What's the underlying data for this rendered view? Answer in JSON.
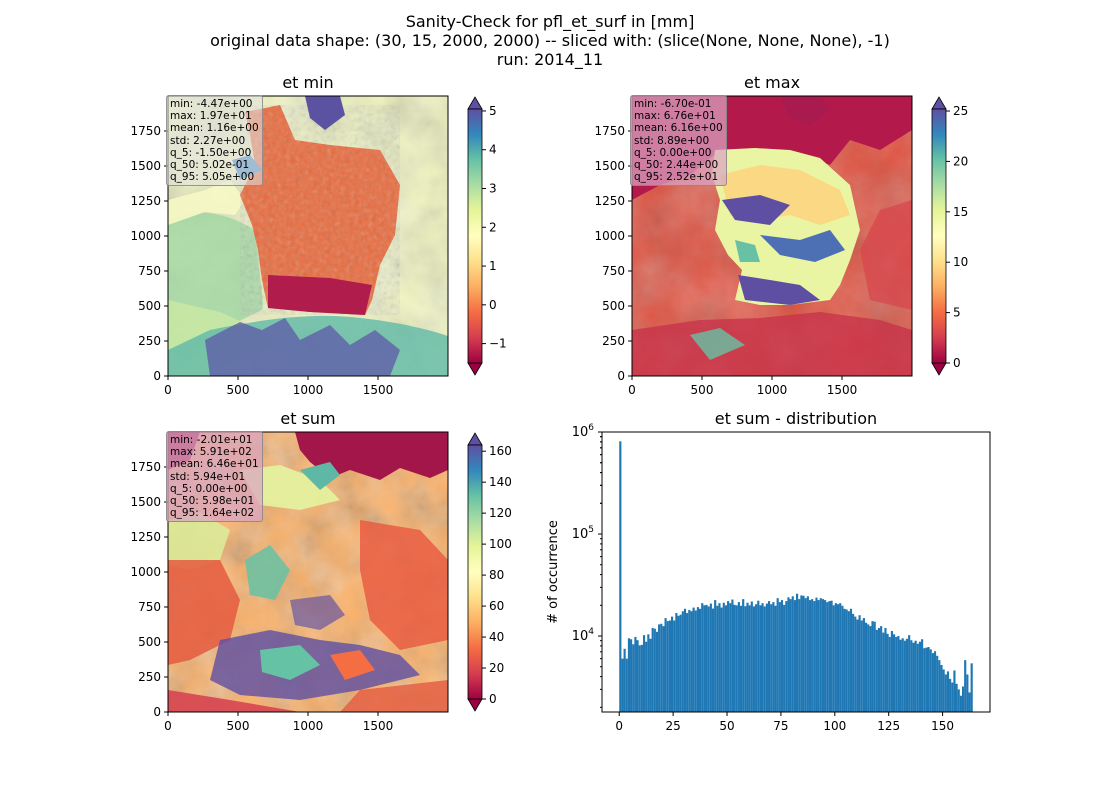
{
  "figure": {
    "title_lines": [
      "Sanity-Check for pfl_et_surf in [mm]",
      "original data shape: (30, 15, 2000, 2000) -- sliced with: (slice(None, None, None), -1)",
      "run: 2014_11"
    ]
  },
  "chart_data": [
    {
      "type": "heatmap",
      "title": "et min",
      "x_ticks": [
        0,
        500,
        1000,
        1500
      ],
      "y_ticks": [
        0,
        250,
        500,
        750,
        1000,
        1250,
        1500,
        1750
      ],
      "xlim": [
        0,
        2000
      ],
      "ylim": [
        0,
        2000
      ],
      "colormap": "Spectral",
      "colorbar": {
        "ticks": [
          -1,
          0,
          1,
          2,
          3,
          4,
          5
        ],
        "range": [
          -1.5,
          5.05
        ],
        "extend": "both"
      },
      "stats": [
        "min: -4.47e+00",
        "max: 1.97e+01",
        "mean: 1.16e+00",
        "std: 2.27e+00",
        "q_5: -1.50e+00",
        "q_50: 5.02e-01",
        "q_95: 5.05e+00"
      ]
    },
    {
      "type": "heatmap",
      "title": "et max",
      "x_ticks": [
        0,
        500,
        1000,
        1500
      ],
      "y_ticks": [
        0,
        250,
        500,
        750,
        1000,
        1250,
        1500,
        1750
      ],
      "xlim": [
        0,
        2000
      ],
      "ylim": [
        0,
        2000
      ],
      "colormap": "Spectral",
      "colorbar": {
        "ticks": [
          0,
          5,
          10,
          15,
          20,
          25
        ],
        "range": [
          0,
          25.2
        ],
        "extend": "both"
      },
      "stats": [
        "min: -6.70e-01",
        "max: 6.76e+01",
        "mean: 6.16e+00",
        "std: 8.89e+00",
        "q_5: 0.00e+00",
        "q_50: 2.44e+00",
        "q_95: 2.52e+01"
      ]
    },
    {
      "type": "heatmap",
      "title": "et sum",
      "x_ticks": [
        0,
        500,
        1000,
        1500
      ],
      "y_ticks": [
        0,
        250,
        500,
        750,
        1000,
        1250,
        1500,
        1750
      ],
      "xlim": [
        0,
        2000
      ],
      "ylim": [
        0,
        2000
      ],
      "colormap": "Spectral",
      "colorbar": {
        "ticks": [
          0,
          20,
          40,
          60,
          80,
          100,
          120,
          140,
          160
        ],
        "range": [
          0,
          164
        ],
        "extend": "both"
      },
      "stats": [
        "min: -2.01e+01",
        "max: 5.91e+02",
        "mean: 6.46e+01",
        "std: 5.94e+01",
        "q_5: 0.00e+00",
        "q_50: 5.98e+01",
        "q_95: 1.64e+02"
      ]
    },
    {
      "type": "bar",
      "title": "et sum - distribution",
      "xlabel": "",
      "ylabel": "# of occurrence",
      "yscale": "log",
      "x_ticks": [
        0,
        25,
        50,
        75,
        100,
        125,
        150
      ],
      "xlim": [
        -8,
        172
      ],
      "ylim": [
        1800,
        1000000
      ],
      "y_tick_labels": [
        "10^4",
        "10^5",
        "10^6"
      ],
      "color": "#1f77b4",
      "bin_width": 1,
      "x": [
        0,
        1,
        2,
        3,
        4,
        5,
        6,
        7,
        8,
        9,
        10,
        11,
        12,
        13,
        14,
        15,
        16,
        17,
        18,
        19,
        20,
        21,
        22,
        23,
        24,
        25,
        26,
        27,
        28,
        29,
        30,
        31,
        32,
        33,
        34,
        35,
        36,
        37,
        38,
        39,
        40,
        41,
        42,
        43,
        44,
        45,
        46,
        47,
        48,
        49,
        50,
        51,
        52,
        53,
        54,
        55,
        56,
        57,
        58,
        59,
        60,
        61,
        62,
        63,
        64,
        65,
        66,
        67,
        68,
        69,
        70,
        71,
        72,
        73,
        74,
        75,
        76,
        77,
        78,
        79,
        80,
        81,
        82,
        83,
        84,
        85,
        86,
        87,
        88,
        89,
        90,
        91,
        92,
        93,
        94,
        95,
        96,
        97,
        98,
        99,
        100,
        101,
        102,
        103,
        104,
        105,
        106,
        107,
        108,
        109,
        110,
        111,
        112,
        113,
        114,
        115,
        116,
        117,
        118,
        119,
        120,
        121,
        122,
        123,
        124,
        125,
        126,
        127,
        128,
        129,
        130,
        131,
        132,
        133,
        134,
        135,
        136,
        137,
        138,
        139,
        140,
        141,
        142,
        143,
        144,
        145,
        146,
        147,
        148,
        149,
        150,
        151,
        152,
        153,
        154,
        155,
        156,
        157,
        158,
        159,
        160,
        161,
        162,
        163
      ],
      "values": [
        810000,
        6000,
        7500,
        6000,
        9500,
        9300,
        8300,
        9800,
        9100,
        8100,
        8200,
        10200,
        8800,
        10400,
        9400,
        12000,
        11800,
        11000,
        13000,
        13200,
        12500,
        15000,
        14000,
        14200,
        15500,
        14200,
        16800,
        15800,
        16200,
        17500,
        18500,
        16800,
        18000,
        17500,
        19000,
        17800,
        19200,
        18500,
        21000,
        20000,
        20200,
        19500,
        20800,
        18600,
        22500,
        19800,
        21000,
        19000,
        21200,
        20000,
        22000,
        21000,
        22800,
        20200,
        20000,
        21500,
        19800,
        23000,
        19600,
        21200,
        20000,
        21800,
        19500,
        20500,
        22200,
        20000,
        21000,
        19500,
        20800,
        22000,
        20500,
        21500,
        19800,
        23500,
        21500,
        22500,
        20200,
        22000,
        24000,
        23000,
        24500,
        22500,
        26000,
        23000,
        25000,
        24800,
        23500,
        24500,
        22500,
        23000,
        22000,
        23800,
        22500,
        23500,
        23000,
        22500,
        21500,
        22000,
        22200,
        20000,
        21000,
        20500,
        21000,
        19800,
        18500,
        18200,
        17500,
        18500,
        16500,
        15500,
        14500,
        16000,
        14200,
        15000,
        13500,
        13000,
        12500,
        14000,
        13800,
        11500,
        12000,
        12500,
        10800,
        12000,
        10500,
        9800,
        11200,
        10400,
        9800,
        10000,
        9200,
        9500,
        9000,
        9400,
        10200,
        9100,
        8600,
        9000,
        8400,
        8800,
        9300,
        7600,
        7700,
        7800,
        7400,
        6800,
        7100,
        6400,
        5800,
        5200,
        4700,
        4200,
        4500,
        3800,
        3500,
        4600,
        3400,
        3000,
        2600,
        3200,
        5800,
        4200,
        2800,
        5400
      ]
    }
  ]
}
